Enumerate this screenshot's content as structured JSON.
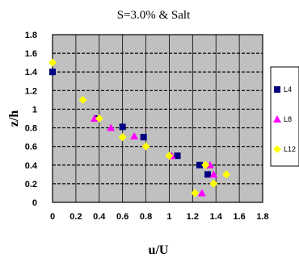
{
  "chart_data": {
    "type": "scatter",
    "title": "S=3.0% & Salt",
    "xlabel": "u/U",
    "ylabel": "z/h",
    "xlim": [
      0,
      1.8
    ],
    "ylim": [
      0,
      1.8
    ],
    "xticks": [
      "0",
      "0.2",
      "0.4",
      "0.6",
      "0.8",
      "1",
      "1.2",
      "1.4",
      "1.6",
      "1.8"
    ],
    "yticks": [
      "0",
      "0.2",
      "0.4",
      "0.6",
      "0.8",
      "1",
      "1.2",
      "1.4",
      "1.6",
      "1.8"
    ],
    "grid": true,
    "legend_position": "right",
    "plot_background": "#c0c0c0",
    "series": [
      {
        "name": "L4",
        "marker": "square",
        "color": "#000080",
        "points": [
          {
            "x": 0.0,
            "y": 1.4
          },
          {
            "x": 0.38,
            "y": 0.9
          },
          {
            "x": 0.6,
            "y": 0.81
          },
          {
            "x": 0.78,
            "y": 0.7
          },
          {
            "x": 1.07,
            "y": 0.5
          },
          {
            "x": 1.26,
            "y": 0.4
          },
          {
            "x": 1.33,
            "y": 0.3
          }
        ]
      },
      {
        "name": "L8",
        "marker": "triangle",
        "color": "#ff00ff",
        "points": [
          {
            "x": 0.36,
            "y": 0.9
          },
          {
            "x": 0.5,
            "y": 0.8
          },
          {
            "x": 0.7,
            "y": 0.71
          },
          {
            "x": 1.02,
            "y": 0.5
          },
          {
            "x": 1.35,
            "y": 0.4
          },
          {
            "x": 1.38,
            "y": 0.3
          },
          {
            "x": 1.28,
            "y": 0.1
          }
        ]
      },
      {
        "name": "L12",
        "marker": "diamond",
        "color": "#ffff00",
        "points": [
          {
            "x": 0.0,
            "y": 1.5
          },
          {
            "x": 0.26,
            "y": 1.1
          },
          {
            "x": 0.4,
            "y": 0.9
          },
          {
            "x": 0.6,
            "y": 0.7
          },
          {
            "x": 0.8,
            "y": 0.6
          },
          {
            "x": 1.0,
            "y": 0.5
          },
          {
            "x": 1.31,
            "y": 0.4
          },
          {
            "x": 1.49,
            "y": 0.3
          },
          {
            "x": 1.38,
            "y": 0.2
          },
          {
            "x": 1.22,
            "y": 0.1
          }
        ]
      }
    ]
  }
}
